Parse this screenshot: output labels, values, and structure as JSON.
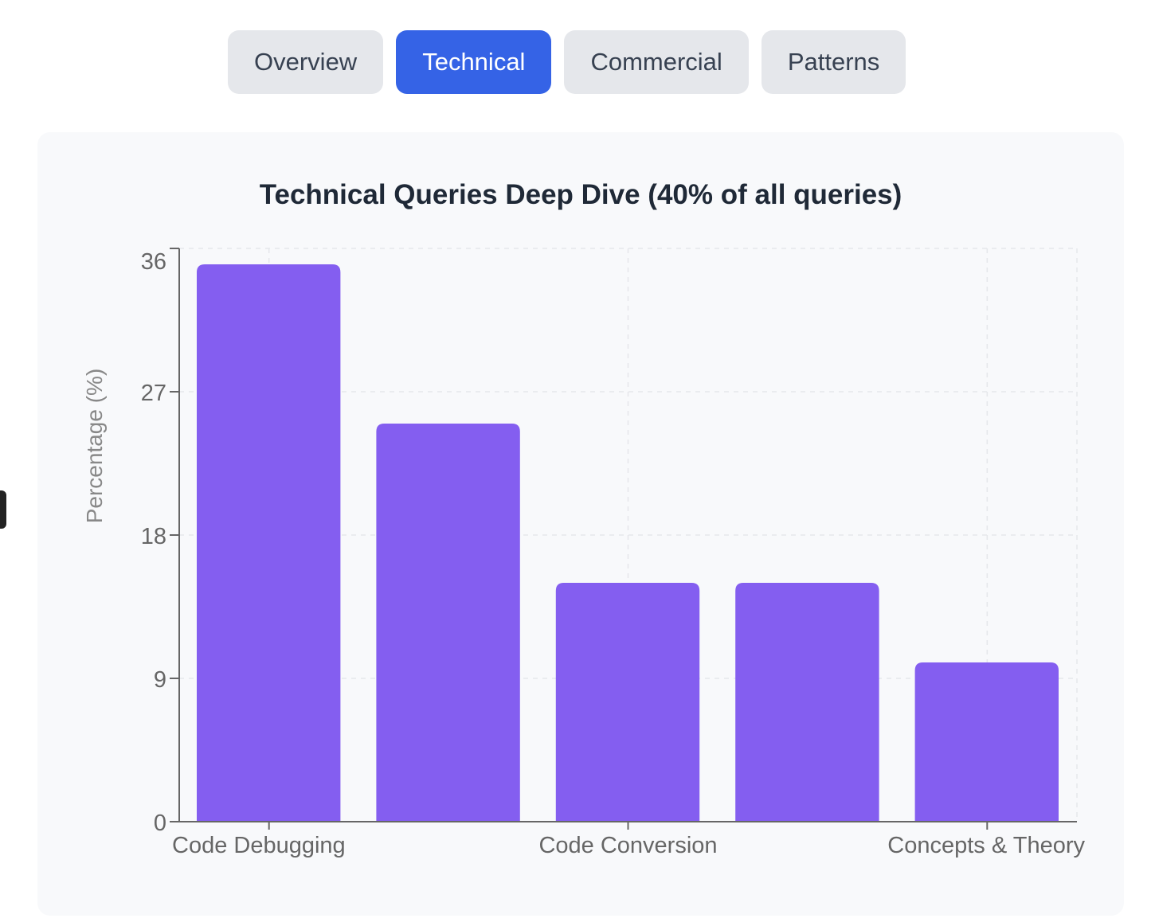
{
  "tabs": [
    {
      "label": "Overview",
      "active": false
    },
    {
      "label": "Technical",
      "active": true
    },
    {
      "label": "Commercial",
      "active": false
    },
    {
      "label": "Patterns",
      "active": false
    }
  ],
  "colors": {
    "accent": "#3563e6",
    "bar": "#845ef0",
    "tab_bg": "#e5e7eb",
    "card_bg": "#f8f9fb"
  },
  "chart_data": {
    "type": "bar",
    "title": "Technical Queries Deep Dive (40% of all queries)",
    "xlabel": "",
    "ylabel": "Percentage (%)",
    "categories": [
      "Code Debugging",
      "",
      "Code Conversion",
      "",
      "Concepts & Theory"
    ],
    "values": [
      35,
      25,
      15,
      15,
      10
    ],
    "ylim": [
      0,
      36
    ],
    "yticks": [
      0,
      9,
      18,
      27,
      36
    ],
    "grid": true
  }
}
